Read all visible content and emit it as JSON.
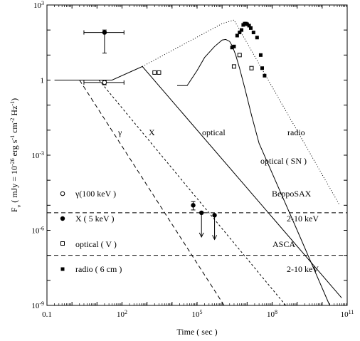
{
  "chart_data": {
    "type": "line",
    "title": "",
    "xlabel": "Time ( sec )",
    "ylabel": "Fν ( mJy = 10^-26 erg s^-1 cm^-2 Hz^-1 )",
    "xscale": "log",
    "yscale": "log",
    "xlim": [
      0.1,
      100000000000.0
    ],
    "ylim": [
      1e-09,
      1000
    ],
    "grid": false,
    "x_ticks": [
      {
        "value": 0.1,
        "label": "0.1"
      },
      {
        "value": 100,
        "label": "10^2"
      },
      {
        "value": 100000,
        "label": "10^5"
      },
      {
        "value": 100000000.0,
        "label": "10^8"
      },
      {
        "value": 100000000000.0,
        "label": "10^11"
      }
    ],
    "y_ticks": [
      {
        "value": 1e-09,
        "label": "10^-9"
      },
      {
        "value": 1e-06,
        "label": "10^-6"
      },
      {
        "value": 0.001,
        "label": "10^-3"
      },
      {
        "value": 1,
        "label": "1"
      },
      {
        "value": 1000,
        "label": "10^3"
      }
    ],
    "series": [
      {
        "name": "γ",
        "style": "dashed",
        "x": [
          2.0,
          1200000.0
        ],
        "y": [
          1.0,
          1e-09
        ]
      },
      {
        "name": "X",
        "style": "short-dashed",
        "x": [
          12.0,
          350000000.0
        ],
        "y": [
          1.0,
          1e-09
        ]
      },
      {
        "name": "optical",
        "style": "solid",
        "x": [
          0.2,
          40,
          650,
          60000000000.0
        ],
        "y": [
          1.0,
          1.0,
          3.5,
          2e-09
        ]
      },
      {
        "name": "optical",
        "style": "solid",
        "x": [
          16000,
          40000,
          100000,
          200000,
          500000,
          1000000,
          1400000,
          2000000,
          2600000,
          3500000,
          5000000,
          8000000,
          15000000.0,
          30000000.0,
          1000000000.0,
          20000000000.0
        ],
        "y": [
          0.6,
          0.6,
          2.4,
          8.0,
          22,
          40,
          42,
          35,
          22,
          10,
          3.0,
          0.5,
          0.04,
          0.003,
          1e-06,
          1e-09
        ]
      },
      {
        "name": "radio",
        "style": "dotted",
        "x": [
          650,
          1000000.0,
          3000000.0,
          50000000000.0
        ],
        "y": [
          3.5,
          180,
          250,
          1e-05
        ]
      }
    ],
    "points": [
      {
        "name": "γ ( 100 keV )",
        "marker": "circle-open",
        "x": [
          20
        ],
        "y": [
          0.8
        ],
        "xerr": [
          [
            3,
            120
          ]
        ],
        "yerr": [
          [
            0.65,
            0.95
          ]
        ]
      },
      {
        "name": "γ ( 100 keV ) upper",
        "marker": "circle-filled",
        "x": [
          20
        ],
        "y": [
          80
        ],
        "xerr": [
          [
            3,
            120
          ]
        ],
        "yerr": [
          [
            12,
            100
          ]
        ]
      },
      {
        "name": "X ( 5 keV )",
        "marker": "circle-filled",
        "x": [
          70000,
          150000,
          500000
        ],
        "y": [
          1e-05,
          5e-06,
          4e-06
        ],
        "yerr": [
          [
            6.5e-06,
            1.4e-05
          ],
          null,
          null
        ],
        "upper_limits": [
          false,
          true,
          true
        ]
      },
      {
        "name": "optical ( V )",
        "marker": "square-open",
        "x": [
          2000,
          3000,
          3000000,
          5000000,
          15000000.0
        ],
        "y": [
          2.0,
          2.0,
          3.5,
          10,
          3.0
        ]
      },
      {
        "name": "radio ( 6 cm )",
        "marker": "square-filled",
        "x": [
          2500000,
          3000000,
          4000000,
          5000000,
          6000000,
          7000000,
          8000000,
          9000000,
          10000000.0,
          12000000.0,
          14000000.0,
          18000000.0,
          25000000.0,
          35000000.0,
          40000000.0,
          50000000.0
        ],
        "y": [
          20,
          22,
          60,
          80,
          100,
          160,
          180,
          180,
          170,
          150,
          120,
          80,
          50,
          10,
          3.0,
          1.5
        ]
      }
    ],
    "hlines": [
      {
        "value": 5e-06,
        "style": "dashed",
        "label": "BeppoSAX",
        "sublabel": "2-10 keV"
      },
      {
        "value": 1e-07,
        "style": "dashed",
        "label": "ASCA",
        "sublabel": "2-10 keV"
      }
    ],
    "annotations": [
      "γ",
      "X",
      "optical",
      "radio",
      "optical ( SN )"
    ],
    "legend": {
      "placement": "lower-left",
      "entries": [
        {
          "marker": "circle-open",
          "label": "γ(100 keV )"
        },
        {
          "marker": "circle-filled",
          "label": "X ( 5 keV )"
        },
        {
          "marker": "square-open",
          "label": "optical ( V )"
        },
        {
          "marker": "square-filled",
          "label": "radio ( 6 cm )"
        }
      ]
    }
  }
}
